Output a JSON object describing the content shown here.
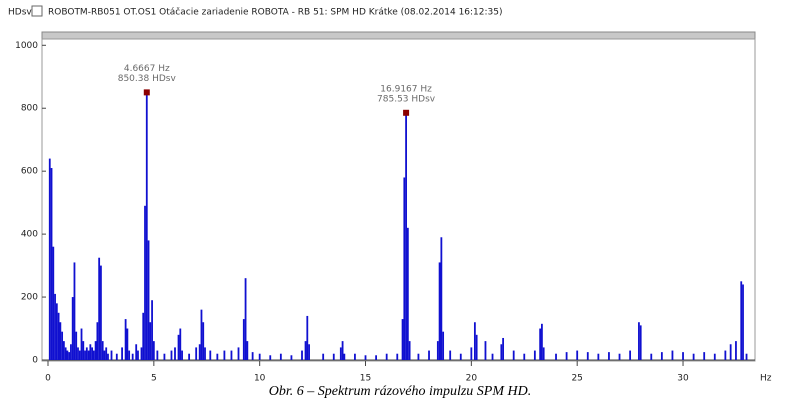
{
  "chart_data": {
    "type": "spectrum",
    "title": "ROBOTM-RB051 OT.OS1  Otáčacie zariadenie ROBOTA  - RB 51: SPM HD Krátke (08.02.2014 16:12:35)",
    "y_label": "HDsv",
    "x_label": "Hz",
    "caption": "Obr. 6 – Spektrum rázového impulzu SPM HD.",
    "color": "#1010d0",
    "marker_color": "#8b0000",
    "xlim": [
      0,
      33.4
    ],
    "ylim": [
      0,
      1020
    ],
    "xticks": [
      0,
      5,
      10,
      15,
      20,
      25,
      30
    ],
    "yticks": [
      0,
      200,
      400,
      600,
      800,
      1000
    ],
    "annotations": [
      {
        "x": 4.6667,
        "y": 850.38,
        "x_label": "4.6667 Hz",
        "y_label": "850.38 HDsv"
      },
      {
        "x": 16.9167,
        "y": 785.53,
        "x_label": "16.9167 Hz",
        "y_label": "785.53 HDsv"
      }
    ],
    "x": [
      0.0833,
      0.1667,
      0.25,
      0.3333,
      0.4167,
      0.5,
      0.5833,
      0.6667,
      0.75,
      0.8333,
      0.9167,
      1.0,
      1.0833,
      1.1667,
      1.25,
      1.3333,
      1.4167,
      1.5,
      1.5833,
      1.6667,
      1.75,
      1.8333,
      1.9167,
      2.0,
      2.0833,
      2.1667,
      2.25,
      2.3333,
      2.4167,
      2.5,
      2.5833,
      2.6667,
      2.75,
      2.8333,
      3.0,
      3.25,
      3.5,
      3.6667,
      3.75,
      3.8333,
      4.0,
      4.1667,
      4.25,
      4.4167,
      4.5,
      4.5833,
      4.6667,
      4.75,
      4.8333,
      4.9167,
      5.0,
      5.1667,
      5.5,
      5.8333,
      6.0,
      6.1667,
      6.25,
      6.3333,
      6.6667,
      7.0,
      7.1667,
      7.25,
      7.3333,
      7.4167,
      7.6667,
      8.0,
      8.3333,
      8.6667,
      9.0,
      9.25,
      9.3333,
      9.4167,
      9.6667,
      10.0,
      10.5,
      11.0,
      11.5,
      12.0,
      12.1667,
      12.25,
      12.3333,
      13.0,
      13.5,
      13.8333,
      13.9167,
      14.0,
      14.5,
      15.0,
      15.5,
      16.0,
      16.5,
      16.75,
      16.8333,
      16.9167,
      17.0,
      17.0833,
      17.5,
      18.0,
      18.4167,
      18.5,
      18.5833,
      18.6667,
      19.0,
      19.5,
      20.0,
      20.1667,
      20.25,
      20.6667,
      21.0,
      21.4167,
      21.5,
      22.0,
      22.5,
      23.0,
      23.25,
      23.3333,
      23.4167,
      24.0,
      24.5,
      25.0,
      25.5,
      26.0,
      26.5,
      27.0,
      27.5,
      27.9167,
      28.0,
      28.5,
      29.0,
      29.5,
      30.0,
      30.5,
      31.0,
      31.5,
      32.0,
      32.25,
      32.5,
      32.75,
      32.8333,
      33.0
    ],
    "values": [
      640,
      610,
      360,
      210,
      180,
      150,
      120,
      90,
      60,
      40,
      30,
      25,
      50,
      200,
      310,
      90,
      40,
      30,
      100,
      60,
      30,
      40,
      30,
      50,
      40,
      30,
      60,
      120,
      325,
      300,
      60,
      30,
      40,
      20,
      30,
      20,
      40,
      130,
      100,
      30,
      20,
      50,
      30,
      40,
      150,
      490,
      850.38,
      380,
      120,
      190,
      60,
      30,
      20,
      30,
      40,
      80,
      100,
      30,
      20,
      40,
      50,
      160,
      120,
      40,
      30,
      20,
      30,
      30,
      40,
      130,
      260,
      60,
      25,
      20,
      15,
      20,
      15,
      30,
      60,
      140,
      50,
      20,
      20,
      40,
      60,
      20,
      20,
      15,
      15,
      20,
      20,
      130,
      580,
      785.53,
      420,
      60,
      20,
      30,
      60,
      310,
      390,
      90,
      30,
      20,
      40,
      120,
      80,
      60,
      20,
      50,
      70,
      30,
      20,
      30,
      100,
      115,
      40,
      20,
      25,
      30,
      25,
      20,
      25,
      20,
      30,
      120,
      110,
      20,
      25,
      30,
      25,
      20,
      25,
      20,
      30,
      50,
      60,
      250,
      240,
      20
    ]
  }
}
